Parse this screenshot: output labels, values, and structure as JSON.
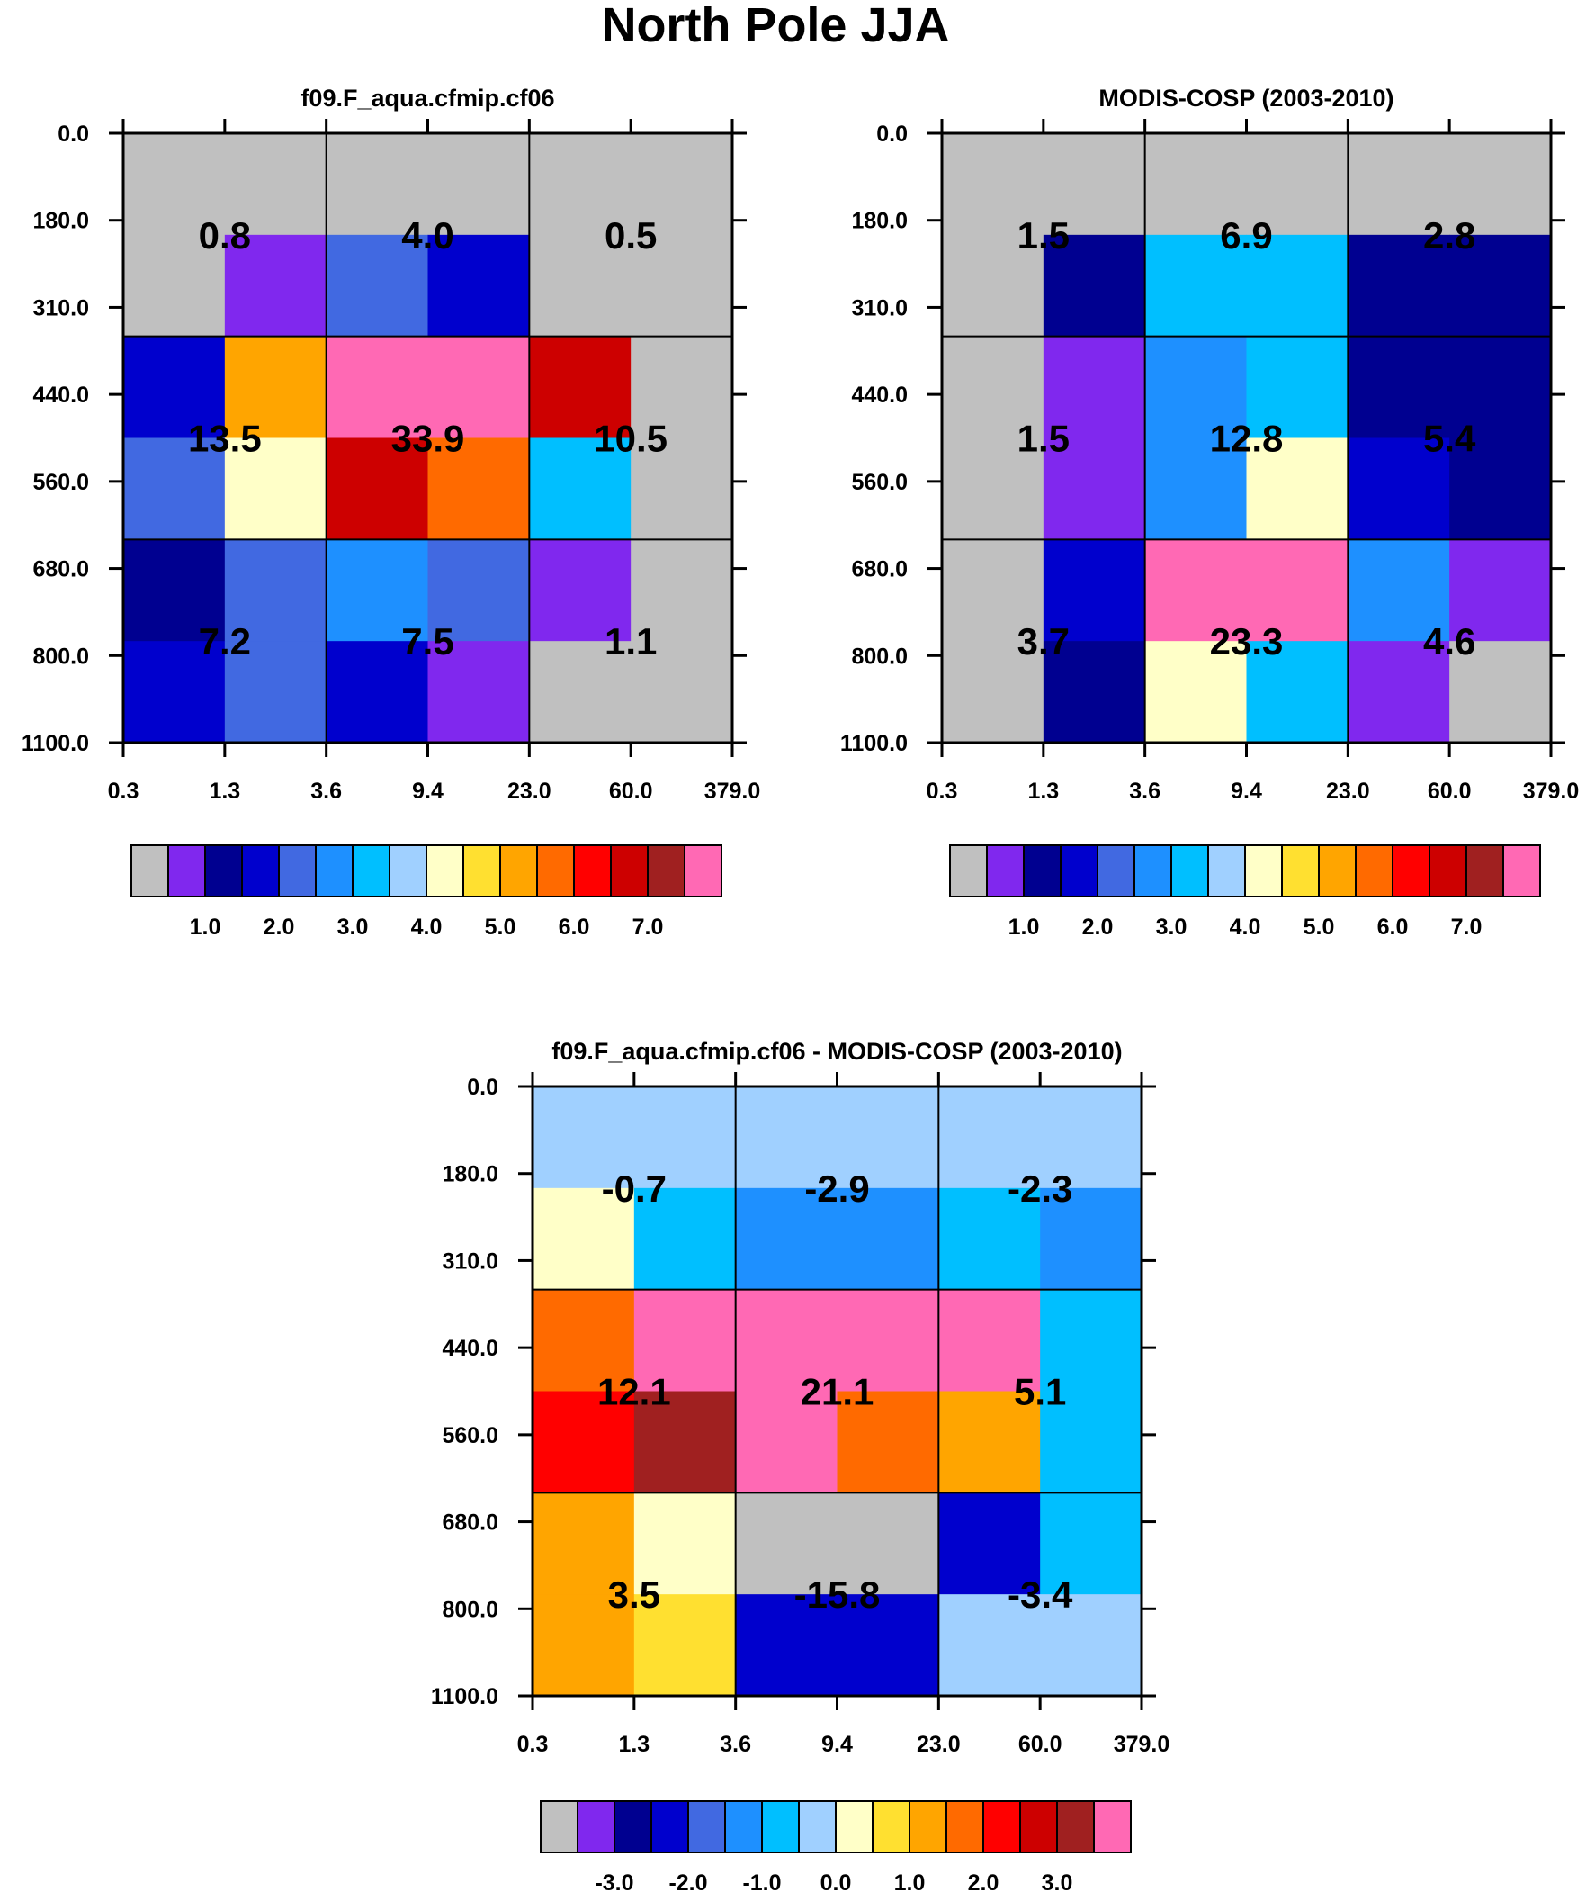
{
  "title": "North Pole JJA",
  "palette": {
    "colors": [
      "#c0c0c0",
      "#8028ee",
      "#000090",
      "#0000cd",
      "#4169e1",
      "#1e90ff",
      "#00bfff",
      "#a0d0ff",
      "#ffffc8",
      "#ffe030",
      "#ffa500",
      "#ff6a00",
      "#ff0000",
      "#cd0000",
      "#a02020",
      "#ff69b4"
    ],
    "grey_fill": "#c0c0c0"
  },
  "chart_data": [
    {
      "type": "heatmap",
      "title": "f09.F_aqua.cfmip.cf06",
      "x_ticks": [
        "0.3",
        "1.3",
        "3.6",
        "9.4",
        "23.0",
        "60.0",
        "379.0"
      ],
      "y_ticks": [
        "0.0",
        "180.0",
        "310.0",
        "440.0",
        "560.0",
        "680.0",
        "800.0",
        "1100.0"
      ],
      "cell_colors": [
        [
          0,
          0,
          0,
          0,
          0,
          0
        ],
        [
          0,
          1,
          4,
          3,
          0,
          0
        ],
        [
          3,
          10,
          15,
          15,
          13,
          0
        ],
        [
          4,
          8,
          13,
          11,
          6,
          0
        ],
        [
          2,
          4,
          5,
          4,
          1,
          0
        ],
        [
          3,
          4,
          3,
          1,
          0,
          0
        ]
      ],
      "block_values": [
        [
          "0.8",
          "4.0",
          "0.5"
        ],
        [
          "13.5",
          "33.9",
          "10.5"
        ],
        [
          "7.2",
          "7.5",
          "1.1"
        ]
      ],
      "colorbar_labels": [
        "1.0",
        "2.0",
        "3.0",
        "4.0",
        "5.0",
        "6.0",
        "7.0"
      ]
    },
    {
      "type": "heatmap",
      "title": "MODIS-COSP (2003-2010)",
      "x_ticks": [
        "0.3",
        "1.3",
        "3.6",
        "9.4",
        "23.0",
        "60.0",
        "379.0"
      ],
      "y_ticks": [
        "0.0",
        "180.0",
        "310.0",
        "440.0",
        "560.0",
        "680.0",
        "800.0",
        "1100.0"
      ],
      "cell_colors": [
        [
          0,
          0,
          0,
          0,
          0,
          0
        ],
        [
          0,
          2,
          6,
          6,
          2,
          2
        ],
        [
          0,
          1,
          5,
          6,
          2,
          2
        ],
        [
          0,
          1,
          5,
          8,
          3,
          2
        ],
        [
          0,
          3,
          15,
          15,
          5,
          1
        ],
        [
          0,
          2,
          8,
          6,
          1,
          0
        ]
      ],
      "block_values": [
        [
          "1.5",
          "6.9",
          "2.8"
        ],
        [
          "1.5",
          "12.8",
          "5.4"
        ],
        [
          "3.7",
          "23.3",
          "4.6"
        ]
      ],
      "colorbar_labels": [
        "1.0",
        "2.0",
        "3.0",
        "4.0",
        "5.0",
        "6.0",
        "7.0"
      ]
    },
    {
      "type": "heatmap",
      "title": "f09.F_aqua.cfmip.cf06 - MODIS-COSP (2003-2010)",
      "x_ticks": [
        "0.3",
        "1.3",
        "3.6",
        "9.4",
        "23.0",
        "60.0",
        "379.0"
      ],
      "y_ticks": [
        "0.0",
        "180.0",
        "310.0",
        "440.0",
        "560.0",
        "680.0",
        "800.0",
        "1100.0"
      ],
      "cell_colors": [
        [
          7,
          7,
          7,
          7,
          7,
          7
        ],
        [
          8,
          6,
          5,
          5,
          6,
          5
        ],
        [
          11,
          15,
          15,
          15,
          15,
          6
        ],
        [
          12,
          14,
          15,
          11,
          10,
          6
        ],
        [
          10,
          8,
          0,
          0,
          3,
          6
        ],
        [
          10,
          9,
          3,
          3,
          7,
          7
        ]
      ],
      "block_values": [
        [
          "-0.7",
          "-2.9",
          "-2.3"
        ],
        [
          "12.1",
          "21.1",
          "5.1"
        ],
        [
          "3.5",
          "-15.8",
          "-3.4"
        ]
      ],
      "colorbar_labels": [
        "-3.0",
        "-2.0",
        "-1.0",
        "0.0",
        "1.0",
        "2.0",
        "3.0"
      ]
    }
  ]
}
